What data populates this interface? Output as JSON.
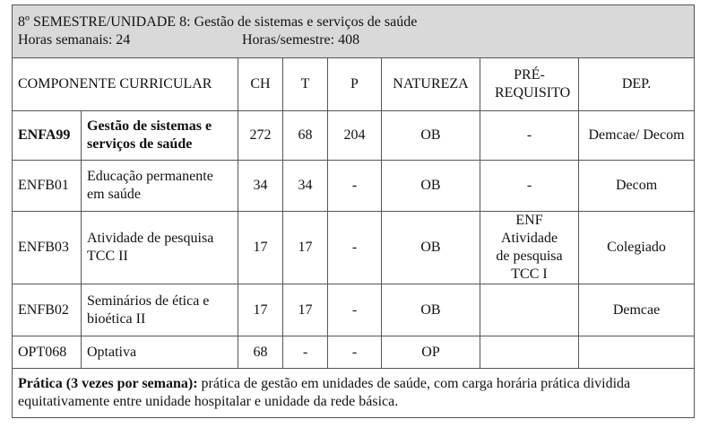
{
  "title": "8º SEMESTRE/UNIDADE 8: Gestão de sistemas e serviços de saúde",
  "weekly_hours": "Horas semanais: 24",
  "semester_hours": "Horas/semestre: 408",
  "headers": {
    "component": "COMPONENTE CURRICULAR",
    "ch": "CH",
    "t": "T",
    "p": "P",
    "nature": "NATUREZA",
    "prereq": "PRÉ-REQUISITO",
    "dep": "DEP."
  },
  "rows": [
    {
      "code": "ENFA99",
      "name": "Gestão de sistemas e serviços de saúde",
      "ch": "272",
      "t": "68",
      "p": "204",
      "nature": "OB",
      "prereq": "-",
      "dep": "Demcae/ Decom"
    },
    {
      "code": "ENFB01",
      "name": "Educação permanente em saúde",
      "ch": "34",
      "t": "34",
      "p": "-",
      "nature": "OB",
      "prereq": "-",
      "dep": "Decom"
    },
    {
      "code": "ENFB03",
      "name": "Atividade de pesquisa TCC II",
      "ch": "17",
      "t": "17",
      "p": "-",
      "nature": "OB",
      "prereq": "ENF Atividade de pesquisa TCC I",
      "dep": "Colegiado"
    },
    {
      "code": "ENFB02",
      "name": "Seminários de ética e bioética II",
      "ch": "17",
      "t": "17",
      "p": "-",
      "nature": "OB",
      "prereq": "",
      "dep": "Demcae"
    },
    {
      "code": "OPT068",
      "name": "Optativa",
      "ch": "68",
      "t": "-",
      "p": "-",
      "nature": "OP",
      "prereq": "",
      "dep": ""
    }
  ],
  "footer": {
    "bold": "Prática (3 vezes por semana):",
    "text": " prática de gestão em unidades de saúde, com carga horária prática dividida equitativamente entre unidade hospitalar e unidade da rede básica."
  }
}
